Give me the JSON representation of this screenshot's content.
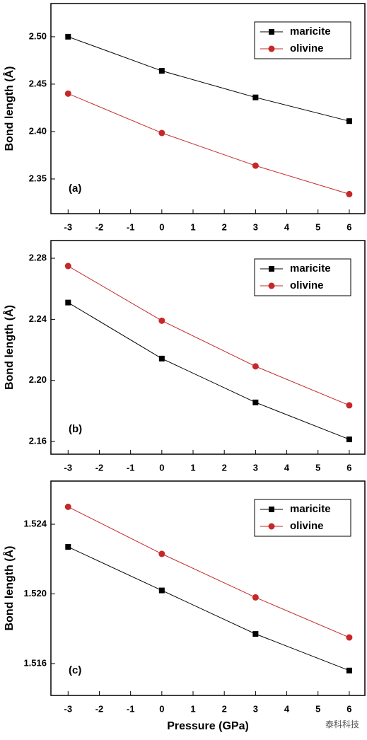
{
  "chart_data": [
    {
      "type": "line",
      "label": "(a)",
      "y_label": "Bond length (Å)",
      "x": [
        -3,
        0,
        3,
        6
      ],
      "xlim": [
        -3.55,
        6.5
      ],
      "xticks": [
        -3,
        -2,
        -1,
        0,
        1,
        2,
        3,
        4,
        5,
        6
      ],
      "ylim": [
        2.3134,
        2.535
      ],
      "yticks": [
        {
          "value": 2.5,
          "label": "2.50"
        },
        2.45,
        {
          "value": 2.4,
          "label": "2.40"
        },
        2.35
      ],
      "legend": "top-right",
      "series": [
        {
          "name": "maricite",
          "color": "#000000",
          "marker": "square",
          "values": [
            2.5,
            2.464,
            2.436,
            2.411
          ]
        },
        {
          "name": "olivine",
          "color": "#c62828",
          "marker": "circle",
          "values": [
            2.44,
            2.3985,
            2.364,
            2.334
          ]
        }
      ]
    },
    {
      "type": "line",
      "label": "(b)",
      "y_label": "Bond length (Å)",
      "x": [
        -3,
        0,
        3,
        6
      ],
      "xlim": [
        -3.55,
        6.5
      ],
      "xticks": [
        -3,
        -2,
        -1,
        0,
        1,
        2,
        3,
        4,
        5,
        6
      ],
      "ylim": [
        2.1517,
        2.2916
      ],
      "yticks": [
        2.28,
        2.24,
        {
          "value": 2.2,
          "label": "2.20"
        },
        2.16
      ],
      "legend": "top-right",
      "series": [
        {
          "name": "maricite",
          "color": "#000000",
          "marker": "square",
          "values": [
            2.251,
            2.2143,
            2.1856,
            2.1614
          ]
        },
        {
          "name": "olivine",
          "color": "#c62828",
          "marker": "circle",
          "values": [
            2.2749,
            2.2391,
            2.2092,
            2.1837
          ]
        }
      ]
    },
    {
      "type": "line",
      "label": "(c)",
      "y_label": "Bond length (Å)",
      "x_label": "Pressure (GPa)",
      "x": [
        -3,
        0,
        3,
        6
      ],
      "xlim": [
        -3.55,
        6.5
      ],
      "xticks": [
        -3,
        -2,
        -1,
        0,
        1,
        2,
        3,
        4,
        5,
        6
      ],
      "ylim": [
        1.51417,
        1.52648
      ],
      "yticks": [
        1.524,
        {
          "value": 1.52,
          "label": "1.520"
        },
        1.516
      ],
      "legend": "top-right",
      "series": [
        {
          "name": "maricite",
          "color": "#000000",
          "marker": "square",
          "values": [
            1.5227,
            1.5202,
            1.5177,
            1.5156
          ]
        },
        {
          "name": "olivine",
          "color": "#c62828",
          "marker": "circle",
          "values": [
            1.525,
            1.5223,
            1.5198,
            1.5175
          ]
        }
      ]
    }
  ],
  "watermark": "泰科科技"
}
